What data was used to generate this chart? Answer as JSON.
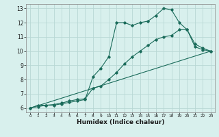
{
  "xlabel": "Humidex (Indice chaleur)",
  "background_color": "#d8f0ed",
  "grid_color": "#b8d8d4",
  "line_color": "#1a6b5a",
  "xlim": [
    -0.5,
    23.5
  ],
  "ylim": [
    5.7,
    13.3
  ],
  "xticks": [
    0,
    1,
    2,
    3,
    4,
    5,
    6,
    7,
    8,
    9,
    10,
    11,
    12,
    13,
    14,
    15,
    16,
    17,
    18,
    19,
    20,
    21,
    22,
    23
  ],
  "yticks": [
    6,
    7,
    8,
    9,
    10,
    11,
    12,
    13
  ],
  "line1_x": [
    0,
    1,
    2,
    3,
    4,
    5,
    6,
    7,
    8,
    9,
    10,
    11,
    12,
    13,
    14,
    15,
    16,
    17,
    18,
    19,
    20,
    21,
    22,
    23
  ],
  "line1_y": [
    6.0,
    6.2,
    6.2,
    6.2,
    6.3,
    6.4,
    6.5,
    6.6,
    8.2,
    8.8,
    9.6,
    12.0,
    12.0,
    11.8,
    12.0,
    12.1,
    12.5,
    13.0,
    12.9,
    12.0,
    11.5,
    10.3,
    10.1,
    10.0
  ],
  "line2_x": [
    0,
    1,
    2,
    3,
    4,
    5,
    6,
    7,
    8,
    9,
    10,
    11,
    12,
    13,
    14,
    15,
    16,
    17,
    18,
    19,
    20,
    21,
    22,
    23
  ],
  "line2_y": [
    6.0,
    6.1,
    6.2,
    6.25,
    6.35,
    6.5,
    6.6,
    6.65,
    7.4,
    7.55,
    8.0,
    8.5,
    9.1,
    9.6,
    10.0,
    10.4,
    10.8,
    11.0,
    11.1,
    11.5,
    11.5,
    10.5,
    10.2,
    10.0
  ],
  "line3_x": [
    0,
    23
  ],
  "line3_y": [
    6.0,
    10.0
  ]
}
